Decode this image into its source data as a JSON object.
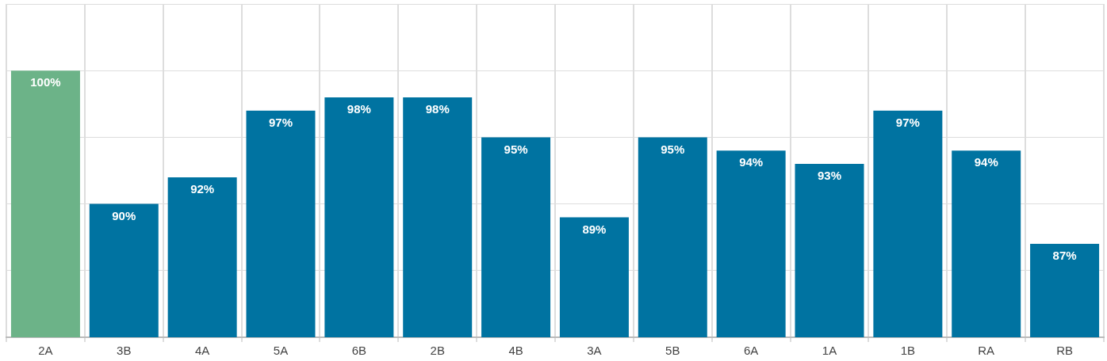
{
  "chart_data": {
    "type": "bar",
    "categories": [
      "2A",
      "3B",
      "4A",
      "5A",
      "6B",
      "2B",
      "4B",
      "3A",
      "5B",
      "6A",
      "1A",
      "1B",
      "RA",
      "RB"
    ],
    "values": [
      100,
      90,
      92,
      97,
      98,
      98,
      95,
      89,
      95,
      94,
      93,
      97,
      94,
      87
    ],
    "colors": [
      "#6cb388",
      "#0073a1",
      "#0073a1",
      "#0073a1",
      "#0073a1",
      "#0073a1",
      "#0073a1",
      "#0073a1",
      "#0073a1",
      "#0073a1",
      "#0073a1",
      "#0073a1",
      "#0073a1",
      "#0073a1"
    ],
    "value_labels": [
      "100%",
      "90%",
      "92%",
      "97%",
      "98%",
      "98%",
      "95%",
      "89%",
      "95%",
      "94%",
      "93%",
      "97%",
      "94%",
      "87%"
    ],
    "ylim": [
      80,
      105
    ],
    "yticks": [
      {
        "value": 80,
        "label": null
      },
      {
        "value": 85,
        "label": null
      },
      {
        "value": 90,
        "label": null
      },
      {
        "value": 95,
        "label": null
      },
      {
        "value": 100,
        "label": null
      },
      {
        "value": 105,
        "label": null
      }
    ],
    "grid": true
  }
}
